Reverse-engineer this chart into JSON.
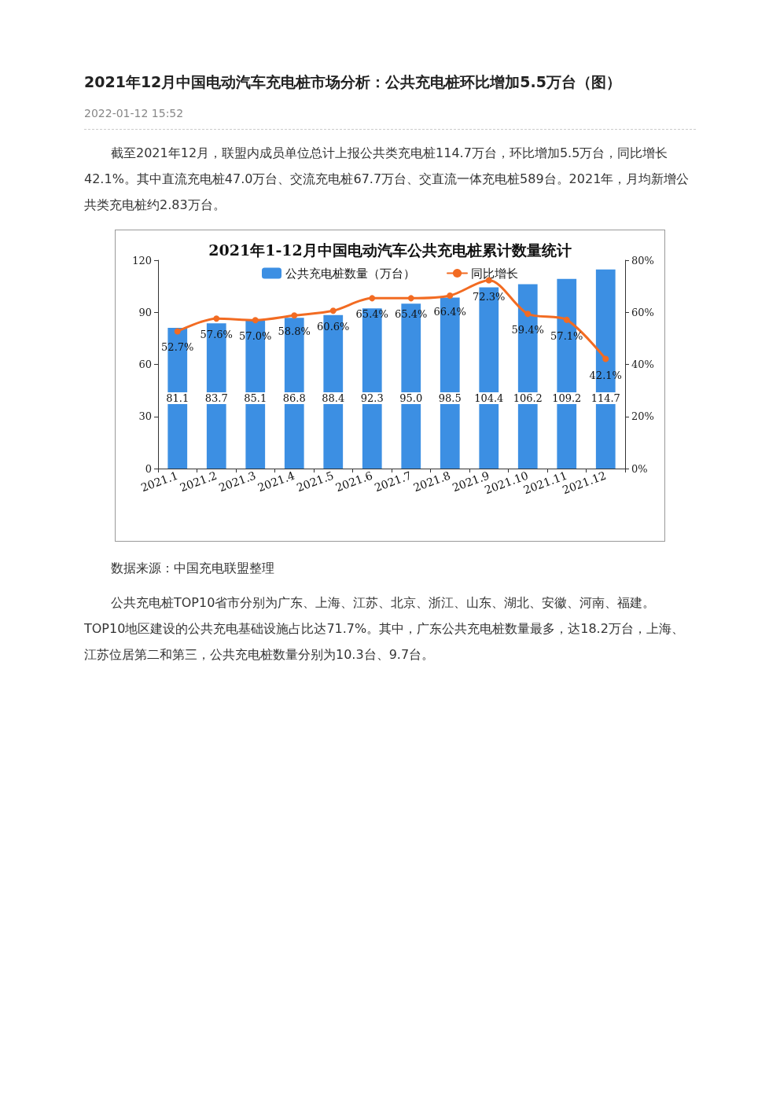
{
  "chart_data": {
    "type": "bar",
    "title": "2021年1-12月中国电动汽车公共充电桩累计数量统计",
    "categories": [
      "2021.1",
      "2021.2",
      "2021.3",
      "2021.4",
      "2021.5",
      "2021.6",
      "2021.7",
      "2021.8",
      "2021.9",
      "2021.10",
      "2021.11",
      "2021.12"
    ],
    "series": [
      {
        "name": "公共充电桩数量（万台）",
        "color": "#3c8fe3",
        "values": [
          81.1,
          83.7,
          85.1,
          86.8,
          88.4,
          92.3,
          95.0,
          98.5,
          104.4,
          106.2,
          109.2,
          114.7
        ],
        "value_labels": [
          "81.1",
          "83.7",
          "85.1",
          "86.8",
          "88.4",
          "92.3",
          "95.0",
          "98.5",
          "104.4",
          "106.2",
          "109.2",
          "114.7"
        ]
      },
      {
        "name": "同比增长",
        "type": "line",
        "axis": "y2",
        "color": "#f26b22",
        "values": [
          52.7,
          57.6,
          57.0,
          58.8,
          60.6,
          65.4,
          65.4,
          66.4,
          72.3,
          59.4,
          57.1,
          42.1
        ],
        "value_labels": [
          "52.7%",
          "57.6%",
          "57.0%",
          "58.8%",
          "60.6%",
          "65.4%",
          "65.4%",
          "66.4%",
          "72.3%",
          "59.4%",
          "57.1%",
          "42.1%"
        ]
      }
    ],
    "ylim": [
      0,
      120
    ],
    "yticks": [
      0,
      30,
      60,
      90,
      120
    ],
    "y2lim": [
      0,
      80
    ],
    "y2ticks": [
      {
        "value": 0,
        "label": "0%"
      },
      {
        "value": 20,
        "label": "20%"
      },
      {
        "value": 40,
        "label": "40%"
      },
      {
        "value": 60,
        "label": "60%"
      },
      {
        "value": 80,
        "label": "80%"
      }
    ],
    "legend": "top",
    "marker": "circle",
    "grid": false,
    "annotations": [
      "2021年12月中国电动汽车充电桩市场分析：公共充电桩环比增加5.5万台（图）",
      "2022-01-12 15:52",
      "截至2021年12月，联盟内成员单位总计上报公共类充电桩114.7万台，环比增加5.5万台，同比增长42.1%。其中直流充电桩47.0万台、交流充电桩67.7万台、交直流一体充电桩589台。2021年，月均新增公共类充电桩约2.83万台。",
      "数据来源：中国充电联盟整理",
      "公共充电桩TOP10省市分别为广东、上海、江苏、北京、浙江、山东、湖北、安徽、河南、福建。TOP10地区建设的公共充电基础设施占比达71.7%。其中，广东公共充电桩数量最多，达18.2万台，上海、江苏位居第二和第三，公共充电桩数量分别为10.3台、9.7台。"
    ]
  }
}
